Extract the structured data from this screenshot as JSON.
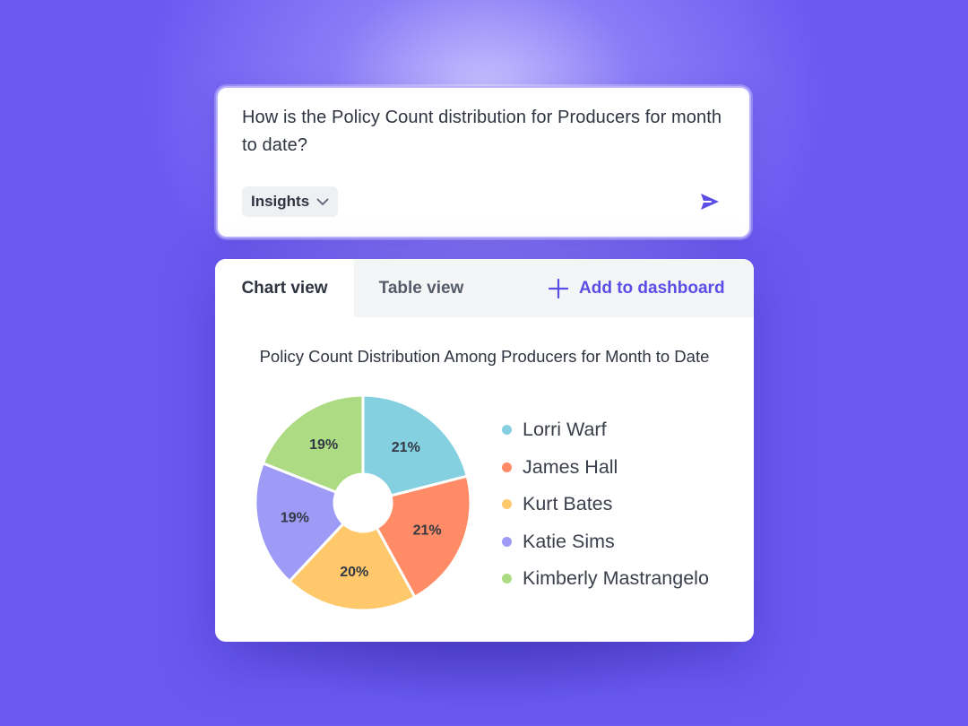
{
  "prompt": {
    "question": "How is the Policy Count distribution for Producers for month to date?",
    "mode_label": "Insights",
    "send_icon": "send-icon"
  },
  "tabs": {
    "chart_view": "Chart view",
    "table_view": "Table view",
    "add_to_dashboard": "Add to dashboard"
  },
  "colors": {
    "accent": "#5b4ee6",
    "background": "#6a59f1"
  },
  "chart_data": {
    "type": "pie",
    "title": "Policy Count Distribution Among Producers for Month to Date",
    "donut": true,
    "legend_position": "right",
    "series": [
      {
        "name": "Lorri Warf",
        "value": 21,
        "label": "21%",
        "color": "#84d0e0"
      },
      {
        "name": "James Hall",
        "value": 21,
        "label": "21%",
        "color": "#ff8c66"
      },
      {
        "name": "Kurt Bates",
        "value": 20,
        "label": "20%",
        "color": "#ffc96b"
      },
      {
        "name": "Katie Sims",
        "value": 19,
        "label": "19%",
        "color": "#9d9bf6"
      },
      {
        "name": "Kimberly Mastrangelo",
        "value": 19,
        "label": "19%",
        "color": "#acdb83"
      }
    ]
  }
}
